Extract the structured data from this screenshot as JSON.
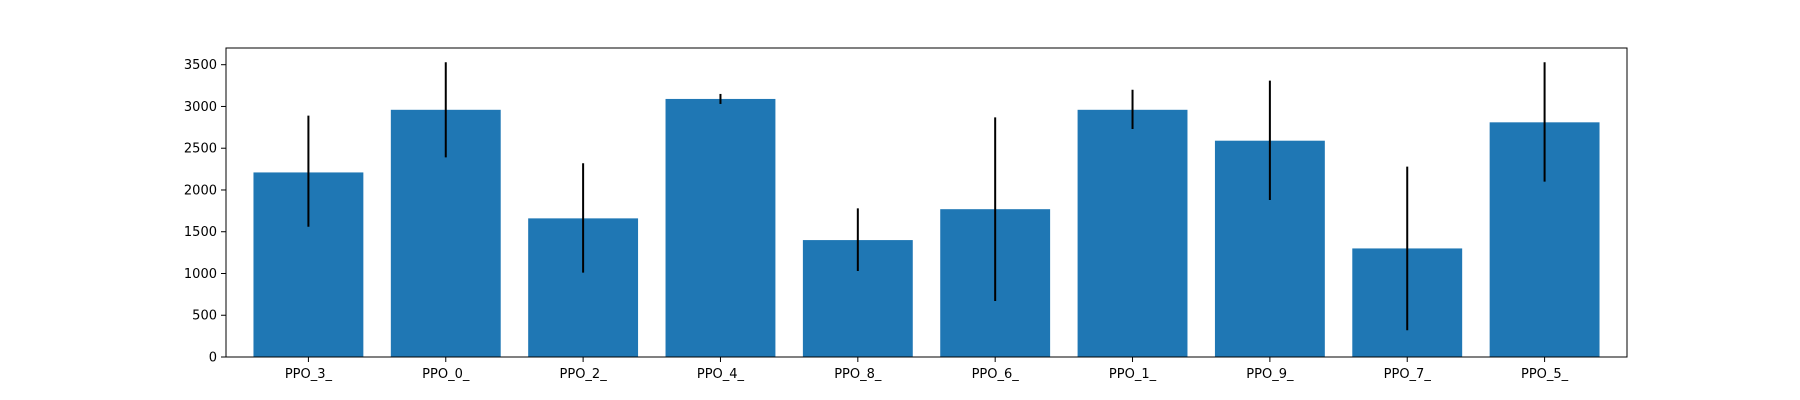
{
  "chart_data": {
    "type": "bar",
    "title": "",
    "xlabel": "",
    "ylabel": "",
    "categories": [
      "PPO_3_",
      "PPO_0_",
      "PPO_2_",
      "PPO_4_",
      "PPO_8_",
      "PPO_6_",
      "PPO_1_",
      "PPO_9_",
      "PPO_7_",
      "PPO_5_"
    ],
    "values": [
      2210,
      2960,
      1660,
      3090,
      1400,
      1770,
      2960,
      2590,
      1300,
      2810
    ],
    "error_low": [
      1560,
      2390,
      1010,
      3030,
      1030,
      670,
      2730,
      1880,
      320,
      2100
    ],
    "error_high": [
      2890,
      3530,
      2320,
      3150,
      1780,
      2870,
      3200,
      3310,
      2280,
      3530
    ],
    "ylim": [
      0,
      3700
    ],
    "yticks": [
      0,
      500,
      1000,
      1500,
      2000,
      2500,
      3000,
      3500
    ],
    "bar_color": "#1f77b4",
    "error_color": "#000000",
    "grid": false,
    "legend": "none"
  }
}
